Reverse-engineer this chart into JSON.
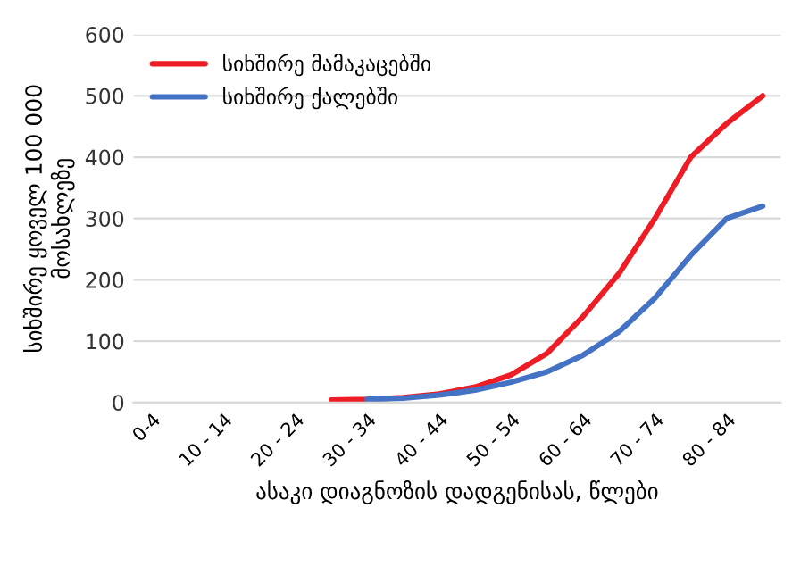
{
  "chart_data": {
    "type": "line",
    "categories": [
      "0-4",
      null,
      "10 - 14",
      null,
      "20 - 24",
      null,
      "30 - 34",
      null,
      "40 - 44",
      null,
      "50 - 54",
      null,
      "60 - 64",
      null,
      "70 - 74",
      null,
      "80 - 84",
      null
    ],
    "series": [
      {
        "name": "სიხშირე მამაკაცებში",
        "color": "#ee1c25",
        "values": [
          null,
          null,
          null,
          null,
          null,
          4,
          5,
          8,
          14,
          25,
          45,
          80,
          140,
          210,
          300,
          400,
          455,
          500
        ]
      },
      {
        "name": "სიხშირე ქალებში",
        "color": "#4472c4",
        "values": [
          null,
          null,
          null,
          null,
          null,
          null,
          5,
          7,
          12,
          20,
          33,
          50,
          77,
          115,
          170,
          240,
          300,
          320
        ]
      }
    ],
    "ylabel": "სიხშირე ყოველ 100 000\nმოსახლეზე",
    "xlabel": "ასაკი დიაგნოზის დადგენისას, წლები",
    "ylim": [
      0,
      600
    ],
    "yticks": [
      0,
      100,
      200,
      300,
      400,
      500,
      600
    ],
    "grid": "y",
    "legend": "top left",
    "marker": "none",
    "line_style": "solid"
  }
}
